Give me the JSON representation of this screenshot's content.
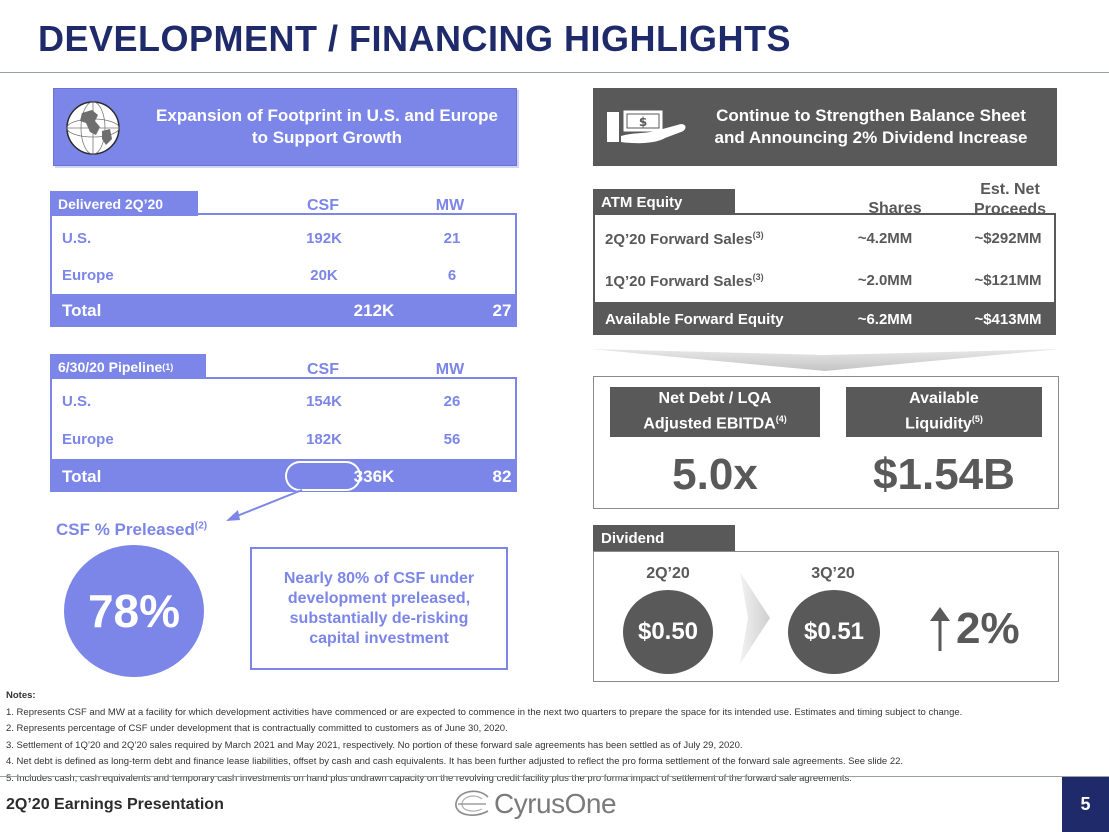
{
  "title": "DEVELOPMENT / FINANCING HIGHLIGHTS",
  "left_banner": {
    "line1": "Expansion of Footprint in U.S. and Europe",
    "line2": "to Support Growth",
    "icon": "globe-icon"
  },
  "right_banner": {
    "line1": "Continue to Strengthen Balance Sheet",
    "line2": "and Announcing 2% Dividend Increase",
    "icon": "cash-hand-icon"
  },
  "delivered": {
    "header": "Delivered 2Q’20",
    "col1": "CSF",
    "col2": "MW",
    "rows": [
      {
        "label": "U.S.",
        "csf": "192K",
        "mw": "21"
      },
      {
        "label": "Europe",
        "csf": "20K",
        "mw": "6"
      }
    ],
    "total": {
      "label": "Total",
      "csf": "212K",
      "mw": "27"
    }
  },
  "pipeline": {
    "header": "6/30/20 Pipeline",
    "header_sup": "(1)",
    "col1": "CSF",
    "col2": "MW",
    "rows": [
      {
        "label": "U.S.",
        "csf": "154K",
        "mw": "26"
      },
      {
        "label": "Europe",
        "csf": "182K",
        "mw": "56"
      }
    ],
    "total": {
      "label": "Total",
      "csf": "336K",
      "mw": "82"
    }
  },
  "preleased": {
    "label": "CSF % Preleased",
    "sup": "(2)",
    "value": "78%"
  },
  "callout": "Nearly 80% of CSF under development preleased, substantially de-risking capital investment",
  "atm": {
    "header": "ATM Equity",
    "col1": "Shares",
    "col2_line1": "Est. Net",
    "col2_line2": "Proceeds",
    "rows": [
      {
        "label": "2Q’20 Forward Sales",
        "sup": "(3)",
        "shares": "~4.2MM",
        "proceeds": "~$292MM"
      },
      {
        "label": "1Q’20 Forward Sales",
        "sup": "(3)",
        "shares": "~2.0MM",
        "proceeds": "~$121MM"
      }
    ],
    "total": {
      "label": "Available Forward Equity",
      "shares": "~6.2MM",
      "proceeds": "~$413MM"
    }
  },
  "metrics": {
    "debt_label1": "Net Debt / LQA",
    "debt_label2": "Adjusted EBITDA",
    "debt_sup": "(4)",
    "debt_value": "5.0x",
    "liq_label1": "Available",
    "liq_label2": "Liquidity",
    "liq_sup": "(5)",
    "liq_value": "$1.54B"
  },
  "dividend": {
    "header": "Dividend",
    "q1_label": "2Q’20",
    "q1_value": "$0.50",
    "q2_label": "3Q’20",
    "q2_value": "$0.51",
    "increase": "2%"
  },
  "notes": {
    "title": "Notes:",
    "items": [
      "1.  Represents CSF and MW at a facility for which development activities have commenced or are expected to commence in the next two quarters to prepare the space for its intended use. Estimates and timing subject to change.",
      "2.  Represents percentage of CSF under development that is contractually committed to customers as of June 30, 2020.",
      "3.  Settlement of 1Q’20 and 2Q’20 sales required by March 2021 and May 2021, respectively.  No portion of these forward sale agreements has been settled as of July 29, 2020.",
      "4.  Net debt is defined as long-term debt and finance lease liabilities, offset by cash and cash equivalents. It has been further adjusted to reflect the pro forma settlement of the forward sale agreements. See slide 22.",
      "5.  Includes cash, cash equivalents and temporary cash investments on hand plus undrawn capacity on the revolving credit facility plus the pro forma impact of settlement of the forward sale agreements."
    ]
  },
  "footer": {
    "left": "2Q’20 Earnings Presentation",
    "logo": "CyrusOne",
    "page": "5"
  },
  "colors": {
    "blue": "#7b86e8",
    "gray": "#595959",
    "navy": "#1f2a6b"
  }
}
